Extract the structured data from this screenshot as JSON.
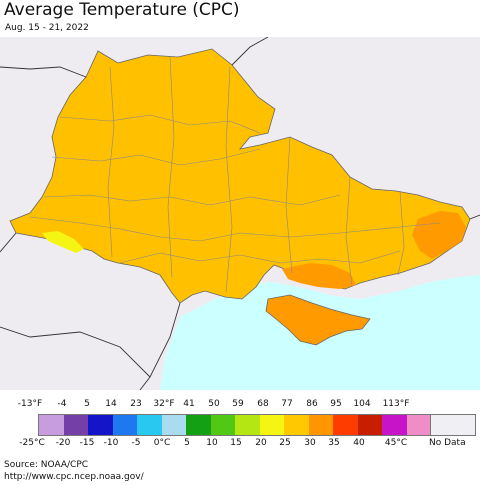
{
  "title": "Average Temperature (CPC)",
  "date_range": "Aug. 15 - 21, 2022",
  "legend": {
    "fahrenheit_labels": [
      "-13°F",
      "-4",
      "5",
      "14",
      "23",
      "32°F",
      "41",
      "50",
      "59",
      "68",
      "77",
      "86",
      "95",
      "104",
      "113°F"
    ],
    "celsius_labels": [
      "-25°C",
      "-20",
      "-15",
      "-10",
      "-5",
      "0°C",
      "5",
      "10",
      "15",
      "20",
      "25",
      "30",
      "35",
      "40",
      "45°C"
    ],
    "colors": [
      "#c89de0",
      "#7440a8",
      "#1414c8",
      "#1e78f0",
      "#28c8f0",
      "#aadcf0",
      "#14a014",
      "#50c814",
      "#b4e614",
      "#f5f514",
      "#ffc800",
      "#ff9600",
      "#ff3c00",
      "#c81e00",
      "#c814c8",
      "#f08cc8"
    ],
    "no_data_label": "No Data",
    "no_data_color": "#f0eff4"
  },
  "map": {
    "region": "Ukraine",
    "dominant_range": "20–25 °C",
    "warm_areas_range": "25–30 °C",
    "cool_area_range": "15–20 °C",
    "region_color": "#ffc000",
    "warm_color": "#ff9a00",
    "cool_color": "#f5f514",
    "sea_color": "#ccffff",
    "outside_color": "#efecf1",
    "labels": []
  },
  "source": {
    "label": "Source: NOAA/CPC",
    "url": "http://www.cpc.ncep.noaa.gov/"
  }
}
